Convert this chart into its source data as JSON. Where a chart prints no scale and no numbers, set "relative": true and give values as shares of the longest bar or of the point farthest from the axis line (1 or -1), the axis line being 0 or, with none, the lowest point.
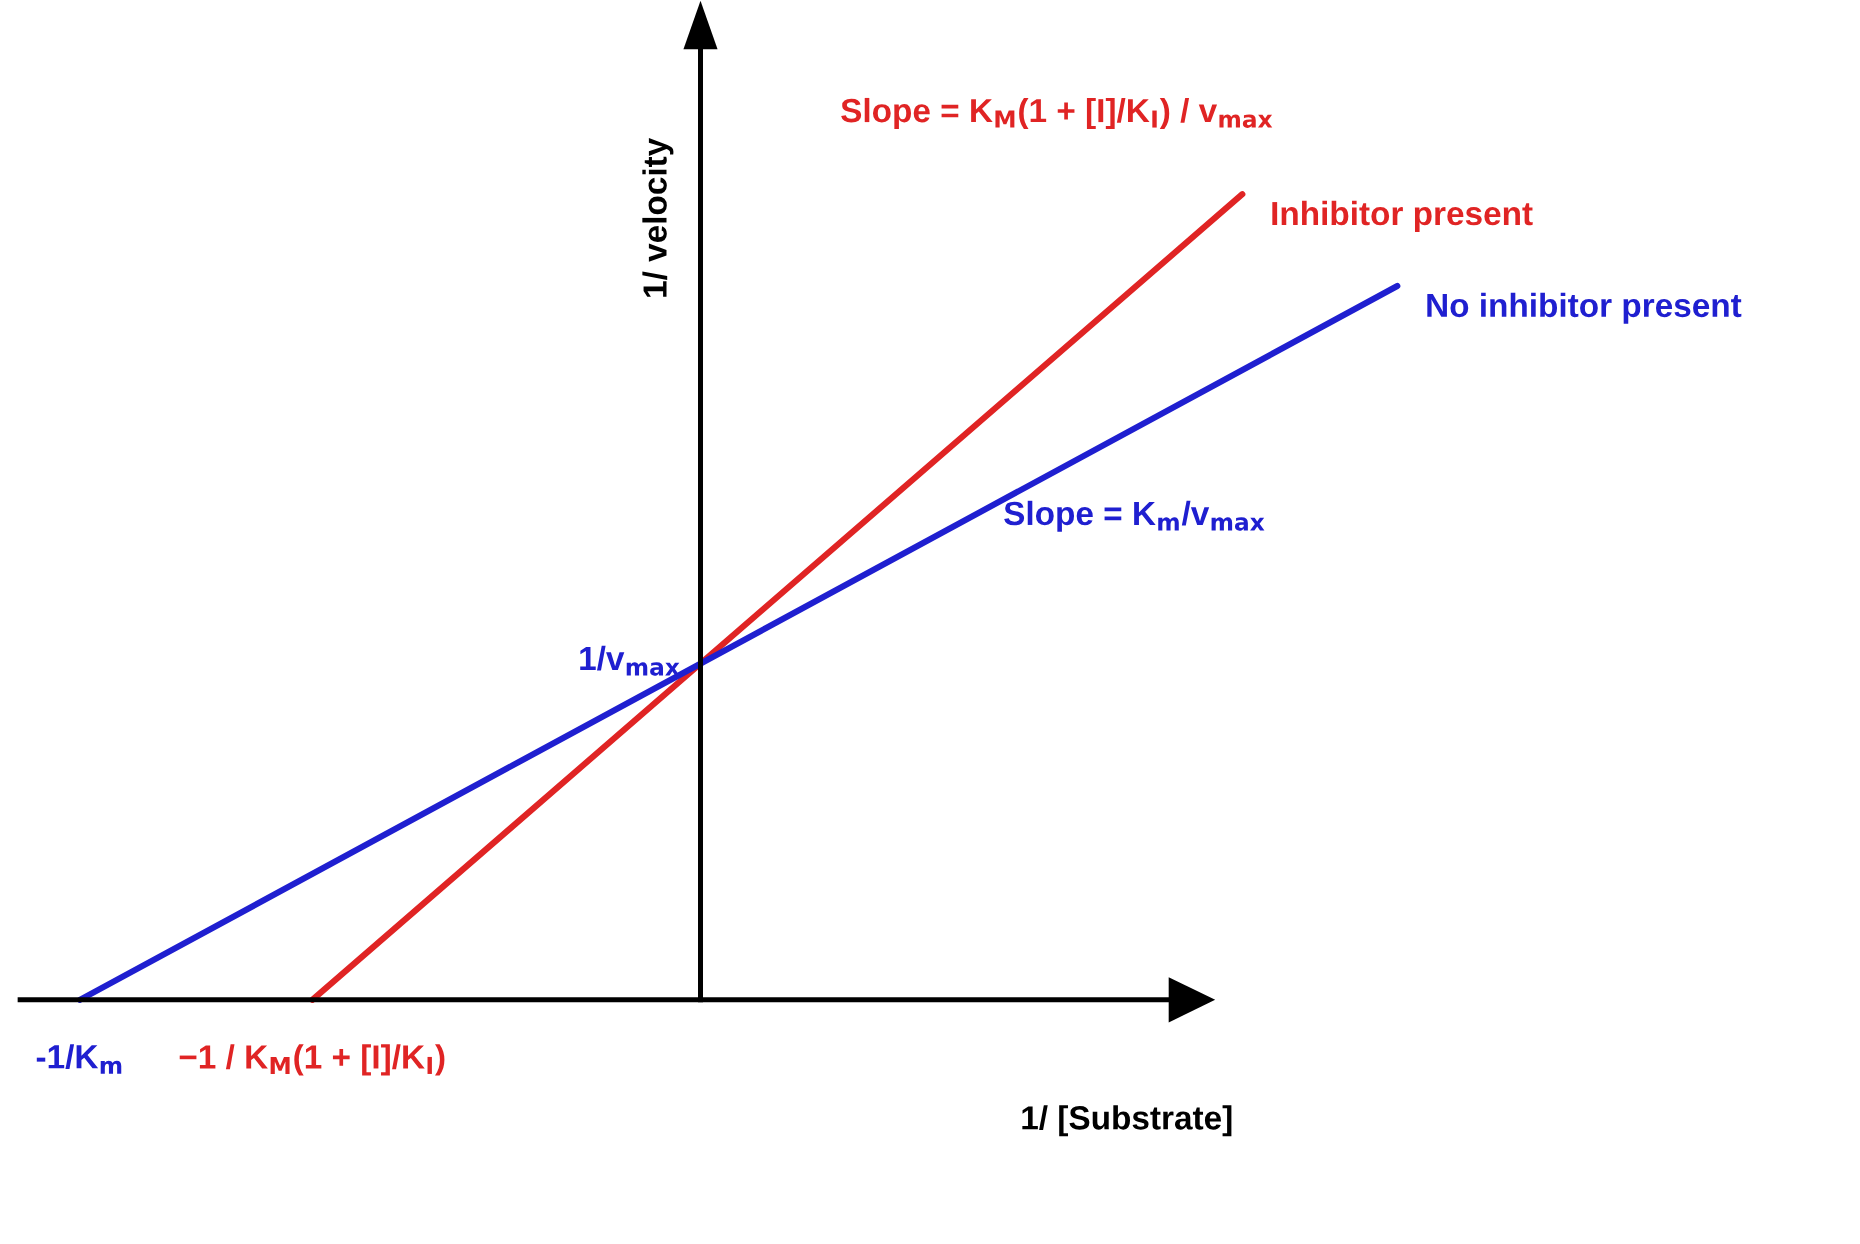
{
  "chart_data": {
    "type": "line",
    "relative": true,
    "xlabel": "1/ [Substrate]",
    "ylabel": "1/ velocity",
    "legend": false,
    "marker": "none",
    "line_style": "solid",
    "categories": [
      "-1/K$_{m}$",
      null,
      null,
      "−1 / K$_{M}$(1 + [I]/K$_{I}$)",
      null,
      null,
      null,
      null,
      null,
      null,
      null,
      null,
      null,
      null,
      null,
      null,
      null,
      null
    ],
    "series": [
      {
        "name": "Inhibitor present",
        "color": "#e02424",
        "values": [
          null,
          null,
          null,
          0,
          null,
          null,
          null,
          null,
          null,
          null,
          null,
          null,
          null,
          null,
          null,
          1,
          null,
          null
        ]
      },
      {
        "name": "No inhibitor present",
        "color": "#1f1fd0",
        "values": [
          0,
          null,
          null,
          null,
          null,
          null,
          null,
          null,
          null,
          null,
          null,
          null,
          null,
          null,
          null,
          null,
          null,
          0.886
        ]
      }
    ],
    "annotations": [
      "1/v$_{max}$",
      "Slope = K$_{M}$(1 + [I]/K$_{I}$) / v$_{max}$",
      "Slope = K$_{m}$/v$_{max}$"
    ]
  }
}
